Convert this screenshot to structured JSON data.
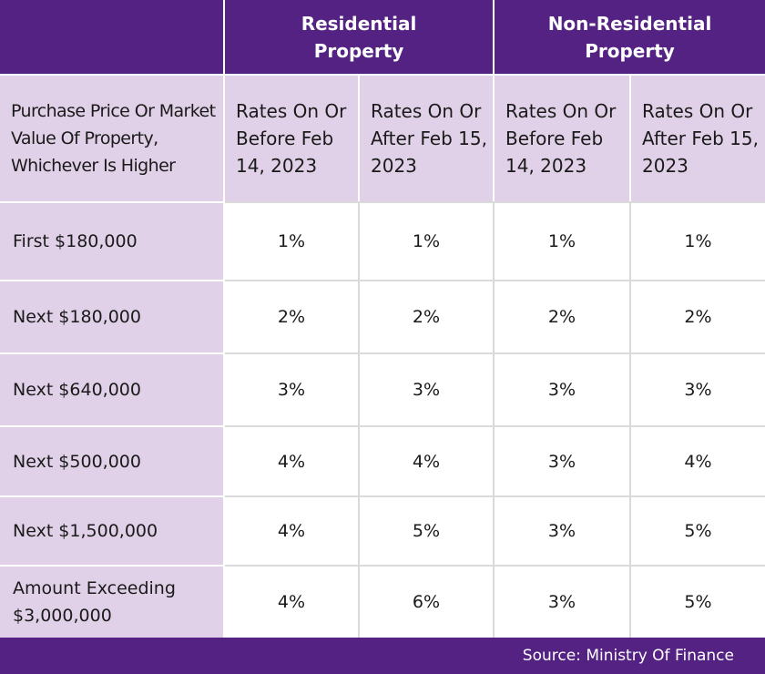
{
  "table": {
    "group_headers": {
      "residential": "Residential Property",
      "non_residential": "Non-Residential Property"
    },
    "subheaders": {
      "bracket_label": "Purchase Price Or Market Value Of Property, Whichever Is Higher",
      "res_before": "Rates On Or Before Feb 14, 2023",
      "res_after": "Rates On Or After Feb 15, 2023",
      "nonres_before": "Rates On Or Before Feb 14, 2023",
      "nonres_after": "Rates On Or After Feb 15, 2023"
    },
    "rows": [
      {
        "bracket": "First $180,000",
        "res_before": "1%",
        "res_after": "1%",
        "nonres_before": "1%",
        "nonres_after": "1%"
      },
      {
        "bracket": "Next $180,000",
        "res_before": "2%",
        "res_after": "2%",
        "nonres_before": "2%",
        "nonres_after": "2%"
      },
      {
        "bracket": "Next $640,000",
        "res_before": "3%",
        "res_after": "3%",
        "nonres_before": "3%",
        "nonres_after": "3%"
      },
      {
        "bracket": "Next $500,000",
        "res_before": "4%",
        "res_after": "4%",
        "nonres_before": "3%",
        "nonres_after": "4%"
      },
      {
        "bracket": "Next $1,500,000",
        "res_before": "4%",
        "res_after": "5%",
        "nonres_before": "3%",
        "nonres_after": "5%"
      },
      {
        "bracket": "Amount Exceeding $3,000,000",
        "res_before": "4%",
        "res_after": "6%",
        "nonres_before": "3%",
        "nonres_after": "5%"
      }
    ]
  },
  "footer": {
    "source": "Source: Ministry Of Finance"
  },
  "colors": {
    "header_purple": "#542283",
    "label_lavender": "#e1d1e8",
    "grid_gray": "#dadada"
  }
}
